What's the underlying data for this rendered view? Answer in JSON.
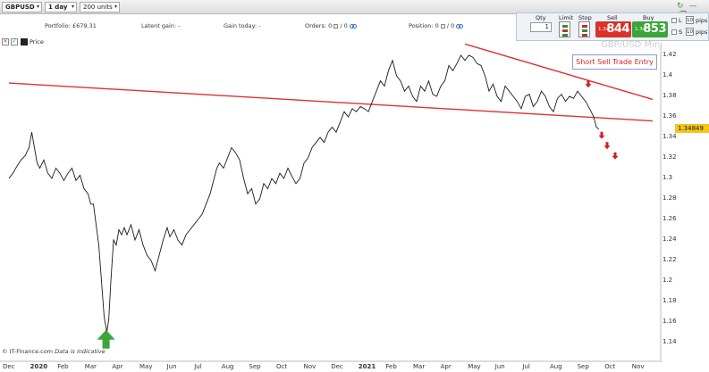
{
  "toolbar": {
    "instrument": "GBPUSD",
    "interval": "1 day",
    "size": "200 units"
  },
  "info": {
    "portfolio": "Portfolio: £679.31",
    "latent_gain": "Latent gain: -",
    "gain_today": "Gain today: -",
    "orders_label": "Orders:",
    "orders_value": "0",
    "orders_sep": "/",
    "orders_value2": "0",
    "position_label": "Position:",
    "position_value": "0",
    "position_sep": "/",
    "position_value2": "0"
  },
  "ticket": {
    "qty_label": "Qty",
    "qty_value": "1",
    "limit_label": "Limit",
    "stop_label": "Stop",
    "sell_label": "Sell",
    "buy_label": "Buy",
    "sell_small": "1.34",
    "sell_big": "844",
    "buy_small": "1.34",
    "buy_big": "853",
    "l_label": "L",
    "s_label": "S",
    "l_pips": "10",
    "s_pips": "10",
    "pips_label": "pips",
    "sell_color": "#d9312b",
    "buy_color": "#3aa53a"
  },
  "legend": {
    "label": "Price"
  },
  "watermark": "GBP/USD Mini",
  "annotation": "Short Sell Trade Entry",
  "copyright": {
    "prefix": "© IT-Finance.com",
    "suffix": "Data is indicative"
  },
  "current_price_label": "1.34849",
  "chart_data": {
    "type": "line",
    "y_ticks": [
      "1.42",
      "1.4",
      "1.38",
      "1.36",
      "1.34",
      "1.32",
      "1.3",
      "1.28",
      "1.26",
      "1.24",
      "1.22",
      "1.2",
      "1.18",
      "1.16",
      "1.14"
    ],
    "x_ticks": [
      {
        "label": "Dec",
        "bold": false
      },
      {
        "label": "2020",
        "bold": true
      },
      {
        "label": "Feb",
        "bold": false
      },
      {
        "label": "Mar",
        "bold": false
      },
      {
        "label": "Apr",
        "bold": false
      },
      {
        "label": "May",
        "bold": false
      },
      {
        "label": "Jun",
        "bold": false
      },
      {
        "label": "Jul",
        "bold": false
      },
      {
        "label": "Aug",
        "bold": false
      },
      {
        "label": "Sep",
        "bold": false
      },
      {
        "label": "Oct",
        "bold": false
      },
      {
        "label": "Nov",
        "bold": false
      },
      {
        "label": "Dec",
        "bold": false
      },
      {
        "label": "2021",
        "bold": true
      },
      {
        "label": "Feb",
        "bold": false
      },
      {
        "label": "Mar",
        "bold": false
      },
      {
        "label": "Apr",
        "bold": false
      },
      {
        "label": "May",
        "bold": false
      },
      {
        "label": "Jun",
        "bold": false
      },
      {
        "label": "Jul",
        "bold": false
      },
      {
        "label": "Aug",
        "bold": false
      },
      {
        "label": "Sep",
        "bold": false
      },
      {
        "label": "Oct",
        "bold": false
      },
      {
        "label": "Nov",
        "bold": false
      }
    ],
    "ylim": [
      1.135,
      1.435
    ],
    "x_range_months": [
      0,
      24
    ],
    "series": [
      {
        "values": [
          [
            0.0,
            1.3
          ],
          [
            0.15,
            1.305
          ],
          [
            0.3,
            1.312
          ],
          [
            0.45,
            1.318
          ],
          [
            0.6,
            1.322
          ],
          [
            0.75,
            1.33
          ],
          [
            0.85,
            1.345
          ],
          [
            0.95,
            1.33
          ],
          [
            1.05,
            1.315
          ],
          [
            1.15,
            1.31
          ],
          [
            1.3,
            1.318
          ],
          [
            1.45,
            1.305
          ],
          [
            1.6,
            1.3
          ],
          [
            1.75,
            1.31
          ],
          [
            1.9,
            1.305
          ],
          [
            2.05,
            1.298
          ],
          [
            2.2,
            1.305
          ],
          [
            2.35,
            1.31
          ],
          [
            2.5,
            1.298
          ],
          [
            2.65,
            1.303
          ],
          [
            2.8,
            1.29
          ],
          [
            2.95,
            1.285
          ],
          [
            3.05,
            1.275
          ],
          [
            3.15,
            1.275
          ],
          [
            3.25,
            1.255
          ],
          [
            3.35,
            1.235
          ],
          [
            3.45,
            1.2
          ],
          [
            3.55,
            1.165
          ],
          [
            3.65,
            1.15
          ],
          [
            3.72,
            1.162
          ],
          [
            3.8,
            1.2
          ],
          [
            3.9,
            1.24
          ],
          [
            4.0,
            1.235
          ],
          [
            4.1,
            1.25
          ],
          [
            4.2,
            1.245
          ],
          [
            4.3,
            1.252
          ],
          [
            4.4,
            1.245
          ],
          [
            4.55,
            1.255
          ],
          [
            4.7,
            1.24
          ],
          [
            4.85,
            1.25
          ],
          [
            5.0,
            1.235
          ],
          [
            5.15,
            1.225
          ],
          [
            5.3,
            1.22
          ],
          [
            5.45,
            1.21
          ],
          [
            5.6,
            1.225
          ],
          [
            5.75,
            1.24
          ],
          [
            5.9,
            1.252
          ],
          [
            6.0,
            1.243
          ],
          [
            6.15,
            1.25
          ],
          [
            6.3,
            1.24
          ],
          [
            6.45,
            1.235
          ],
          [
            6.6,
            1.245
          ],
          [
            6.75,
            1.25
          ],
          [
            6.9,
            1.255
          ],
          [
            7.05,
            1.26
          ],
          [
            7.2,
            1.265
          ],
          [
            7.35,
            1.275
          ],
          [
            7.5,
            1.285
          ],
          [
            7.65,
            1.3
          ],
          [
            7.75,
            1.31
          ],
          [
            7.85,
            1.315
          ],
          [
            8.0,
            1.31
          ],
          [
            8.15,
            1.32
          ],
          [
            8.3,
            1.33
          ],
          [
            8.45,
            1.325
          ],
          [
            8.6,
            1.318
          ],
          [
            8.75,
            1.3
          ],
          [
            8.9,
            1.285
          ],
          [
            9.05,
            1.29
          ],
          [
            9.2,
            1.275
          ],
          [
            9.35,
            1.28
          ],
          [
            9.5,
            1.295
          ],
          [
            9.65,
            1.29
          ],
          [
            9.8,
            1.3
          ],
          [
            9.95,
            1.295
          ],
          [
            10.1,
            1.305
          ],
          [
            10.25,
            1.3
          ],
          [
            10.4,
            1.31
          ],
          [
            10.55,
            1.302
          ],
          [
            10.7,
            1.295
          ],
          [
            10.85,
            1.3
          ],
          [
            11.0,
            1.315
          ],
          [
            11.15,
            1.32
          ],
          [
            11.3,
            1.33
          ],
          [
            11.45,
            1.335
          ],
          [
            11.6,
            1.34
          ],
          [
            11.75,
            1.335
          ],
          [
            11.9,
            1.345
          ],
          [
            12.05,
            1.35
          ],
          [
            12.2,
            1.345
          ],
          [
            12.35,
            1.355
          ],
          [
            12.5,
            1.365
          ],
          [
            12.65,
            1.36
          ],
          [
            12.8,
            1.368
          ],
          [
            12.95,
            1.365
          ],
          [
            13.1,
            1.37
          ],
          [
            13.25,
            1.368
          ],
          [
            13.4,
            1.365
          ],
          [
            13.55,
            1.375
          ],
          [
            13.7,
            1.385
          ],
          [
            13.85,
            1.395
          ],
          [
            14.0,
            1.39
          ],
          [
            14.15,
            1.405
          ],
          [
            14.3,
            1.415
          ],
          [
            14.45,
            1.4
          ],
          [
            14.6,
            1.395
          ],
          [
            14.75,
            1.385
          ],
          [
            14.9,
            1.39
          ],
          [
            15.05,
            1.38
          ],
          [
            15.2,
            1.375
          ],
          [
            15.35,
            1.39
          ],
          [
            15.5,
            1.385
          ],
          [
            15.65,
            1.395
          ],
          [
            15.8,
            1.382
          ],
          [
            15.95,
            1.38
          ],
          [
            16.1,
            1.39
          ],
          [
            16.25,
            1.395
          ],
          [
            16.4,
            1.41
          ],
          [
            16.55,
            1.405
          ],
          [
            16.7,
            1.412
          ],
          [
            16.85,
            1.42
          ],
          [
            17.0,
            1.415
          ],
          [
            17.15,
            1.42
          ],
          [
            17.3,
            1.418
          ],
          [
            17.45,
            1.412
          ],
          [
            17.6,
            1.41
          ],
          [
            17.75,
            1.4
          ],
          [
            17.9,
            1.385
          ],
          [
            18.05,
            1.392
          ],
          [
            18.2,
            1.38
          ],
          [
            18.35,
            1.375
          ],
          [
            18.5,
            1.39
          ],
          [
            18.65,
            1.385
          ],
          [
            18.8,
            1.38
          ],
          [
            18.95,
            1.375
          ],
          [
            19.1,
            1.368
          ],
          [
            19.25,
            1.38
          ],
          [
            19.4,
            1.382
          ],
          [
            19.55,
            1.37
          ],
          [
            19.7,
            1.375
          ],
          [
            19.85,
            1.385
          ],
          [
            20.0,
            1.38
          ],
          [
            20.15,
            1.37
          ],
          [
            20.3,
            1.365
          ],
          [
            20.45,
            1.378
          ],
          [
            20.6,
            1.382
          ],
          [
            20.75,
            1.375
          ],
          [
            20.9,
            1.38
          ],
          [
            21.05,
            1.378
          ],
          [
            21.2,
            1.385
          ],
          [
            21.35,
            1.38
          ],
          [
            21.5,
            1.375
          ],
          [
            21.65,
            1.368
          ],
          [
            21.8,
            1.36
          ],
          [
            21.9,
            1.35
          ],
          [
            22.0,
            1.348
          ]
        ]
      }
    ],
    "trendlines": [
      {
        "x": [
          0,
          24
        ],
        "y": [
          1.393,
          1.356
        ],
        "color": "#e03030"
      },
      {
        "x": [
          17.0,
          24
        ],
        "y": [
          1.431,
          1.377
        ],
        "color": "#e03030"
      }
    ],
    "markers": [
      {
        "type": "up-arrow",
        "x": 3.62,
        "y": 1.142,
        "color": "#3aa53a"
      },
      {
        "type": "down-arrow",
        "x": 21.6,
        "y": 1.392,
        "color": "#d42020"
      },
      {
        "type": "down-arrow",
        "x": 22.1,
        "y": 1.342,
        "color": "#d42020"
      },
      {
        "type": "down-arrow",
        "x": 22.3,
        "y": 1.332,
        "color": "#d42020"
      },
      {
        "type": "down-arrow",
        "x": 22.6,
        "y": 1.322,
        "color": "#d42020"
      }
    ],
    "grid": false
  }
}
